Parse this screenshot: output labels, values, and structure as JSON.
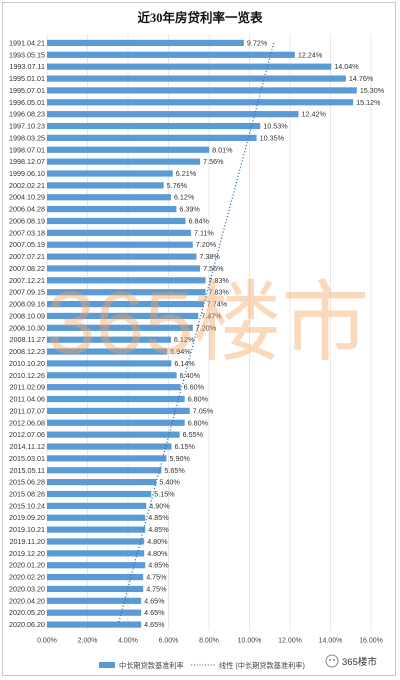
{
  "chart_data": {
    "type": "bar",
    "orientation": "horizontal",
    "title": "近30年房贷利率一览表",
    "categories": [
      "1991.04.21",
      "1993.05.15",
      "1993.07.11",
      "1995.01.01",
      "1995.07.01",
      "1996.05.01",
      "1996.08.23",
      "1997.10.23",
      "1998.03.25",
      "1998.07.01",
      "1998.12.07",
      "1999.06.10",
      "2002.02.21",
      "2004.10.29",
      "2006.04.28",
      "2006.08.19",
      "2007.03.18",
      "2007.05.19",
      "2007.07.21",
      "2007.08.22",
      "2007.12.21",
      "2007.09.15",
      "2008.09.16",
      "2008.10.09",
      "2008.10.30",
      "2008.11.27",
      "2008.12.23",
      "2010.10.20",
      "2010.12.26",
      "2011.02.09",
      "2011.04.06",
      "2011.07.07",
      "2012.06.08",
      "2012.07.06",
      "2014.11.12",
      "2015.03.01",
      "2015.05.11",
      "2015.06.28",
      "2015.08.26",
      "2015.10.24",
      "2019.09.20",
      "2019.10.21",
      "2019.11.20",
      "2019.12.20",
      "2020.01.20",
      "2020.02.20",
      "2020.03.20",
      "2020.04.20",
      "2020.05.20",
      "2020.06.20"
    ],
    "values": [
      9.72,
      12.24,
      14.04,
      14.76,
      15.3,
      15.12,
      12.42,
      10.53,
      10.35,
      8.01,
      7.56,
      6.21,
      5.76,
      6.12,
      6.39,
      6.84,
      7.11,
      7.2,
      7.38,
      7.56,
      7.83,
      7.83,
      7.74,
      7.47,
      7.2,
      6.12,
      5.94,
      6.14,
      6.4,
      6.6,
      6.8,
      7.05,
      6.8,
      6.55,
      6.15,
      5.9,
      5.65,
      5.4,
      5.15,
      4.9,
      4.85,
      4.85,
      4.8,
      4.8,
      4.85,
      4.75,
      4.75,
      4.65,
      4.65,
      4.65
    ],
    "value_labels": [
      "9.72%",
      "12.24%",
      "14.04%",
      "14.76%",
      "15.30%",
      "15.12%",
      "12.42%",
      "10.53%",
      "10.35%",
      "8.01%",
      "7.56%",
      "6.21%",
      "5.76%",
      "6.12%",
      "6.39%",
      "6.84%",
      "7.11%",
      "7.20%",
      "7.38%",
      "7.56%",
      "7.83%",
      "7.83%",
      "7.74%",
      "7.47%",
      "7.20%",
      "6.12%",
      "5.94%",
      "6.14%",
      "6.40%",
      "6.60%",
      "6.80%",
      "7.05%",
      "6.80%",
      "6.55%",
      "6.15%",
      "5.90%",
      "5.65%",
      "5.40%",
      "5.15%",
      "4.90%",
      "4.85%",
      "4.85%",
      "4.80%",
      "4.80%",
      "4.85%",
      "4.75%",
      "4.75%",
      "4.65%",
      "4.65%",
      "4.65%"
    ],
    "highlighted_labels_from": "2020.01.20",
    "xlim": [
      0,
      16
    ],
    "x_ticks": [
      "0.00%",
      "2.00%",
      "4.00%",
      "6.00%",
      "8.00%",
      "10.00%",
      "12.00%",
      "14.00%",
      "16.00%"
    ],
    "grid": true,
    "legend_position": "bottom",
    "series": [
      {
        "name": "中长期贷款基准利率",
        "values_ref": "values"
      }
    ],
    "trendline": {
      "type": "linear",
      "name": "线性 (中长期贷款基准利率)"
    },
    "watermark": "365楼市",
    "colors": {
      "bar": "#5b9bd5",
      "trend": "#2e75b6",
      "highlight_label": "#e60000",
      "label": "#333333",
      "grid": "#d9d9d9"
    }
  },
  "branding": {
    "text": "365楼市",
    "icon": "wechat-official-account-icon"
  }
}
